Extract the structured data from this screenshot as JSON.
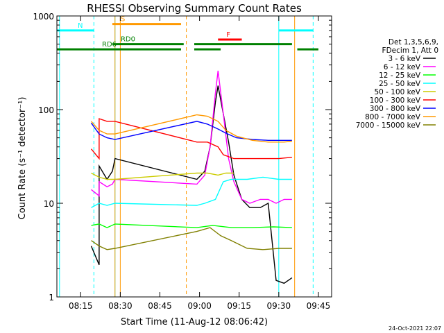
{
  "chart_data": {
    "type": "line",
    "title": "RHESSI Observing Summary Count Rates",
    "xlabel": "Start Time (11-Aug-12 08:06:42)",
    "ylabel": "Count Rate (s⁻¹ detector⁻¹)",
    "yscale": "log",
    "ylim": [
      1,
      1000
    ],
    "xlim": [
      "08:06",
      "09:50"
    ],
    "x_ticks": [
      "08:15",
      "08:30",
      "08:45",
      "09:00",
      "09:15",
      "09:30",
      "09:45"
    ],
    "y_ticks": [
      "1",
      "10",
      "100",
      "1000"
    ],
    "legend_header": [
      "Det 1,3,5,6,9,",
      "FDecim 1, Att 0"
    ],
    "legend_position": "right",
    "footer_date": "24-Oct-2021 22:07",
    "series": [
      {
        "name": "3 - 6 keV",
        "color": "#000000",
        "points": [
          [
            "08:19",
            3.5
          ],
          [
            "08:22",
            2.2
          ],
          [
            "08:22",
            25
          ],
          [
            "08:25",
            18
          ],
          [
            "08:27",
            22
          ],
          [
            "08:28",
            30
          ],
          [
            "08:59",
            18
          ],
          [
            "09:02",
            22
          ],
          [
            "09:04",
            40
          ],
          [
            "09:06",
            120
          ],
          [
            "09:07",
            180
          ],
          [
            "09:09",
            90
          ],
          [
            "09:11",
            45
          ],
          [
            "09:13",
            20
          ],
          [
            "09:16",
            11
          ],
          [
            "09:19",
            9
          ],
          [
            "09:23",
            9
          ],
          [
            "09:26",
            10
          ],
          [
            "09:29",
            1.5
          ],
          [
            "09:32",
            1.4
          ],
          [
            "09:35",
            1.6
          ]
        ]
      },
      {
        "name": "6 - 12 keV",
        "color": "#ff00ff",
        "points": [
          [
            "08:19",
            14
          ],
          [
            "08:22",
            12
          ],
          [
            "08:22",
            17
          ],
          [
            "08:25",
            15
          ],
          [
            "08:27",
            16
          ],
          [
            "08:28",
            18
          ],
          [
            "08:59",
            16
          ],
          [
            "09:02",
            20
          ],
          [
            "09:04",
            40
          ],
          [
            "09:06",
            150
          ],
          [
            "09:07",
            260
          ],
          [
            "09:09",
            90
          ],
          [
            "09:11",
            30
          ],
          [
            "09:13",
            17
          ],
          [
            "09:16",
            11
          ],
          [
            "09:19",
            10
          ],
          [
            "09:23",
            11
          ],
          [
            "09:26",
            11
          ],
          [
            "09:29",
            10
          ],
          [
            "09:32",
            11
          ],
          [
            "09:35",
            11
          ]
        ]
      },
      {
        "name": "12 - 25 keV",
        "color": "#00ff00",
        "points": [
          [
            "08:19",
            5.8
          ],
          [
            "08:22",
            6
          ],
          [
            "08:25",
            5.5
          ],
          [
            "08:28",
            6
          ],
          [
            "08:59",
            5.5
          ],
          [
            "09:05",
            5.8
          ],
          [
            "09:12",
            5.5
          ],
          [
            "09:20",
            5.5
          ],
          [
            "09:28",
            5.6
          ],
          [
            "09:35",
            5.5
          ]
        ]
      },
      {
        "name": "25 - 50 keV",
        "color": "#00ffff",
        "points": [
          [
            "08:19",
            9
          ],
          [
            "08:22",
            10
          ],
          [
            "08:25",
            9.5
          ],
          [
            "08:28",
            10
          ],
          [
            "08:59",
            9.5
          ],
          [
            "09:02",
            10
          ],
          [
            "09:06",
            11
          ],
          [
            "09:09",
            17
          ],
          [
            "09:12",
            18
          ],
          [
            "09:18",
            18
          ],
          [
            "09:24",
            19
          ],
          [
            "09:30",
            18
          ],
          [
            "09:35",
            18
          ]
        ]
      },
      {
        "name": "50 - 100 keV",
        "color": "#cccc00",
        "points": [
          [
            "08:19",
            21
          ],
          [
            "08:22",
            19
          ],
          [
            "08:25",
            18
          ],
          [
            "08:28",
            18
          ],
          [
            "08:59",
            21
          ],
          [
            "09:03",
            21
          ],
          [
            "09:07",
            20
          ],
          [
            "09:10",
            21
          ],
          [
            "09:13",
            21
          ]
        ]
      },
      {
        "name": "100 - 300 keV",
        "color": "#ff0000",
        "points": [
          [
            "08:19",
            38
          ],
          [
            "08:22",
            30
          ],
          [
            "08:22",
            80
          ],
          [
            "08:25",
            75
          ],
          [
            "08:28",
            75
          ],
          [
            "08:59",
            45
          ],
          [
            "09:03",
            45
          ],
          [
            "09:07",
            40
          ],
          [
            "09:09",
            33
          ],
          [
            "09:13",
            30
          ],
          [
            "09:18",
            30
          ],
          [
            "09:24",
            30
          ],
          [
            "09:30",
            30
          ],
          [
            "09:35",
            31
          ]
        ]
      },
      {
        "name": "300 - 800 keV",
        "color": "#0000ff",
        "points": [
          [
            "08:19",
            72
          ],
          [
            "08:22",
            55
          ],
          [
            "08:25",
            50
          ],
          [
            "08:28",
            48
          ],
          [
            "08:59",
            75
          ],
          [
            "09:03",
            70
          ],
          [
            "09:07",
            62
          ],
          [
            "09:10",
            56
          ],
          [
            "09:14",
            50
          ],
          [
            "09:20",
            48
          ],
          [
            "09:26",
            47
          ],
          [
            "09:32",
            47
          ],
          [
            "09:35",
            47
          ]
        ]
      },
      {
        "name": "800 - 7000 keV",
        "color": "#ff9900",
        "points": [
          [
            "08:19",
            75
          ],
          [
            "08:22",
            60
          ],
          [
            "08:25",
            55
          ],
          [
            "08:28",
            55
          ],
          [
            "08:59",
            88
          ],
          [
            "09:03",
            85
          ],
          [
            "09:07",
            75
          ],
          [
            "09:10",
            60
          ],
          [
            "09:14",
            52
          ],
          [
            "09:20",
            47
          ],
          [
            "09:26",
            45
          ],
          [
            "09:32",
            45
          ],
          [
            "09:35",
            46
          ]
        ]
      },
      {
        "name": "7000 - 15000 keV",
        "color": "#808000",
        "points": [
          [
            "08:19",
            4
          ],
          [
            "08:22",
            3.5
          ],
          [
            "08:25",
            3.2
          ],
          [
            "08:28",
            3.3
          ],
          [
            "08:59",
            5
          ],
          [
            "09:04",
            5.5
          ],
          [
            "09:08",
            4.5
          ],
          [
            "09:12",
            4
          ],
          [
            "09:18",
            3.3
          ],
          [
            "09:24",
            3.2
          ],
          [
            "09:30",
            3.3
          ],
          [
            "09:35",
            3.3
          ]
        ]
      }
    ],
    "flag_bars": [
      {
        "label": "N",
        "color": "#00ffff",
        "y": 700,
        "segments": [
          [
            "08:06",
            "08:20"
          ],
          [
            "09:30",
            "09:43"
          ]
        ]
      },
      {
        "label": "S",
        "color": "#ff9900",
        "y": 820,
        "segments": [
          [
            "08:27",
            "08:53"
          ]
        ]
      },
      {
        "label": "F",
        "color": "#ff0000",
        "y": 560,
        "segments": [
          [
            "09:07",
            "09:16"
          ]
        ]
      },
      {
        "label": "RD0",
        "color": "#008000",
        "y": 500,
        "segments": [
          [
            "08:27",
            "08:54"
          ],
          [
            "08:58",
            "09:35"
          ]
        ]
      },
      {
        "label": "RD6",
        "color": "#008000",
        "y": 440,
        "segments": [
          [
            "08:06",
            "08:53"
          ],
          [
            "08:58",
            "09:08"
          ],
          [
            "09:37",
            "09:45"
          ]
        ]
      }
    ],
    "vertical_markers": [
      {
        "x": "08:07",
        "color": "#00ffff",
        "style": "solid"
      },
      {
        "x": "08:20",
        "color": "#00ffff",
        "style": "dashed"
      },
      {
        "x": "08:28",
        "color": "#00ffff",
        "style": "solid"
      },
      {
        "x": "08:28",
        "color": "#ff9900",
        "style": "solid"
      },
      {
        "x": "08:30",
        "color": "#ff9900",
        "style": "solid"
      },
      {
        "x": "08:55",
        "color": "#ff9900",
        "style": "dashed"
      },
      {
        "x": "09:30",
        "color": "#00ffff",
        "style": "solid"
      },
      {
        "x": "09:36",
        "color": "#ff9900",
        "style": "solid"
      },
      {
        "x": "09:43",
        "color": "#00ffff",
        "style": "dashed"
      }
    ]
  }
}
